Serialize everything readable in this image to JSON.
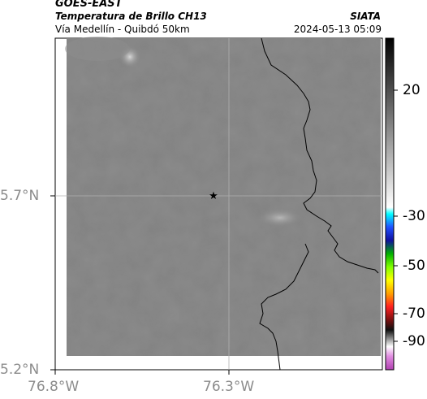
{
  "header": {
    "satellite": "GOES-EAST",
    "product": "Temperatura de Brillo CH13",
    "region": "Vía Medellín - Quibdó 50km",
    "source": "SIATA",
    "datetime": "2024-05-13 05:09"
  },
  "map": {
    "lat_ticks": [
      "5.7°N",
      "5.2°N"
    ],
    "lon_ticks": [
      "76.8°W",
      "76.3°W"
    ],
    "marker_icon": "star-icon"
  },
  "colorbar": {
    "ticks": [
      "20",
      "-30",
      "-50",
      "-70",
      "-90"
    ]
  },
  "colors": {
    "field_gray": "#828282",
    "border": "#000000"
  }
}
